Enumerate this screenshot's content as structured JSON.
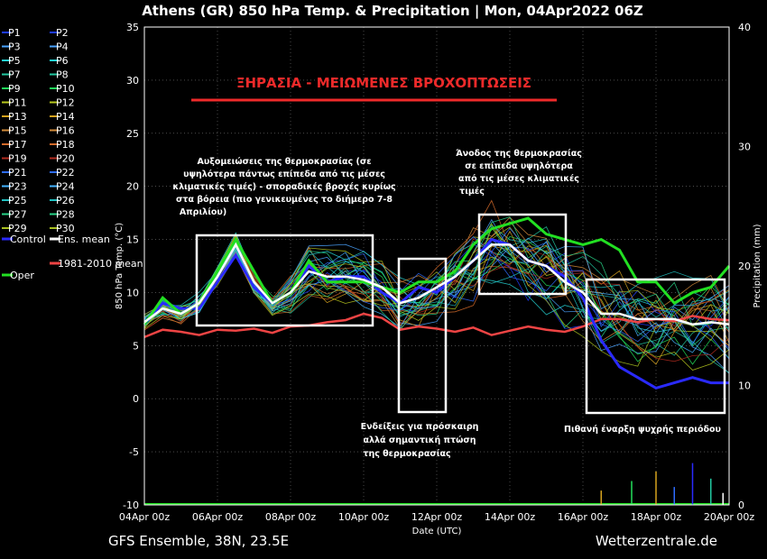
{
  "chart_data": {
    "type": "line",
    "title": "Athens  (GR)  850 hPa Temp. & Precipitation | Mon, 04Apr2022 06Z",
    "xlabel": "Date (UTC)",
    "ylabel": "850 hPa Temp. (°C)",
    "y2label": "Precipitation (mm)",
    "ylim": [
      -10,
      35
    ],
    "y2lim": [
      0,
      40
    ],
    "xlim": [
      "04Apr 00z",
      "20Apr 00z"
    ],
    "x_ticks": [
      "04Apr 00z",
      "06Apr 00z",
      "08Apr 00z",
      "10Apr 00z",
      "12Apr 00z",
      "14Apr 00z",
      "16Apr 00z",
      "18Apr 00z",
      "20Apr 00z"
    ],
    "y_ticks": [
      "35",
      "30",
      "25",
      "20",
      "15",
      "10",
      "5",
      "0",
      "-5",
      "-10"
    ],
    "y2_ticks": [
      "40",
      "30",
      "20",
      "10",
      "0"
    ],
    "grid": true,
    "legend_position": "left",
    "legend": [
      "P1",
      "P2",
      "P3",
      "P4",
      "P5",
      "P6",
      "P7",
      "P8",
      "P9",
      "P10",
      "P11",
      "P12",
      "P13",
      "P14",
      "P15",
      "P16",
      "P17",
      "P18",
      "P19",
      "P20",
      "P21",
      "P22",
      "P23",
      "P24",
      "P25",
      "P26",
      "P27",
      "P28",
      "P29",
      "P30",
      "Control",
      "Ens. mean",
      "Oper",
      "1981-2010 mean"
    ],
    "legend_colors": [
      "#1e3cff",
      "#1e3cff",
      "#4aa3ff",
      "#4aa3ff",
      "#24d3d3",
      "#24d3d3",
      "#22c7a0",
      "#22c7a0",
      "#22e05a",
      "#22e05a",
      "#b8c91e",
      "#b8c91e",
      "#d6a21e",
      "#d6a21e",
      "#d08a3a",
      "#d08a3a",
      "#d46a2a",
      "#d46a2a",
      "#b02a1e",
      "#b02a1e",
      "#2e6cff",
      "#2e6cff",
      "#44b4ff",
      "#44b4ff",
      "#20c0c0",
      "#20c0c0",
      "#28d488",
      "#28d488",
      "#a8c020",
      "#a8c020",
      "#2a2aff",
      "#ffffff",
      "#22e022",
      "#ee4444"
    ],
    "series": [
      {
        "name": "Ens. mean",
        "x_hours": [
          0,
          12,
          24,
          36,
          48,
          60,
          72,
          84,
          96,
          108,
          120,
          132,
          144,
          156,
          168,
          180,
          192,
          204,
          216,
          228,
          240,
          252,
          264,
          276,
          288,
          300,
          312,
          324,
          336,
          348,
          360,
          372,
          384
        ],
        "values": [
          7.2,
          8.5,
          8.0,
          9.0,
          11.5,
          14.5,
          11.0,
          9.0,
          10.0,
          12.0,
          11.5,
          11.5,
          11.2,
          10.5,
          9.0,
          9.5,
          10.5,
          11.5,
          13.0,
          14.5,
          14.5,
          13.0,
          12.5,
          11.0,
          10.0,
          8.0,
          8.0,
          7.5,
          7.5,
          7.5,
          7.0,
          7.2,
          7.0
        ]
      },
      {
        "name": "Control",
        "x_hours": [
          0,
          12,
          24,
          36,
          48,
          60,
          72,
          84,
          96,
          108,
          120,
          132,
          144,
          156,
          168,
          180,
          192,
          204,
          216,
          228,
          240,
          252,
          264,
          276,
          288,
          300,
          312,
          324,
          336,
          348,
          360,
          372,
          384
        ],
        "values": [
          7.0,
          9.0,
          8.5,
          8.5,
          11.0,
          13.5,
          10.5,
          9.0,
          10.0,
          12.5,
          11.0,
          11.5,
          11.5,
          10.0,
          9.0,
          10.5,
          10.0,
          11.5,
          13.0,
          15.0,
          14.5,
          13.0,
          12.5,
          11.5,
          9.5,
          5.5,
          3.0,
          2.0,
          1.0,
          1.5,
          2.0,
          1.5,
          1.5
        ]
      },
      {
        "name": "Oper",
        "x_hours": [
          0,
          12,
          24,
          36,
          48,
          60,
          72,
          84,
          96,
          108,
          120,
          132,
          144,
          156,
          168,
          180,
          192,
          204,
          216,
          228,
          240,
          252,
          264,
          276,
          288,
          300,
          312,
          324,
          336,
          348,
          360,
          372,
          384
        ],
        "values": [
          7.0,
          9.5,
          8.0,
          9.0,
          12.0,
          15.0,
          12.0,
          9.0,
          10.0,
          13.0,
          11.0,
          11.0,
          11.0,
          10.5,
          10.0,
          11.0,
          11.0,
          12.0,
          14.5,
          16.0,
          16.5,
          17.0,
          15.5,
          15.0,
          14.5,
          15.0,
          14.0,
          11.0,
          11.0,
          9.0,
          10.0,
          10.5,
          12.5
        ]
      },
      {
        "name": "1981-2010 mean",
        "x_hours": [
          0,
          12,
          24,
          36,
          48,
          60,
          72,
          84,
          96,
          108,
          120,
          132,
          144,
          156,
          168,
          180,
          192,
          204,
          216,
          228,
          240,
          252,
          264,
          276,
          288,
          300,
          312,
          324,
          336,
          348,
          360,
          372,
          384
        ],
        "values": [
          5.8,
          6.5,
          6.3,
          6.0,
          6.5,
          6.4,
          6.6,
          6.2,
          6.8,
          6.9,
          7.2,
          7.4,
          8.0,
          7.6,
          6.5,
          6.8,
          6.6,
          6.3,
          6.7,
          6.0,
          6.4,
          6.8,
          6.5,
          6.3,
          6.8,
          7.5,
          7.5,
          7.2,
          7.5,
          7.3,
          7.8,
          7.5,
          7.4
        ]
      }
    ],
    "annotations": [
      {
        "text": "ΞΗΡΑΣΙΑ - ΜΕΙΩΜΕΝΕΣ ΒΡΟΧΟΠΤΩΣΕΙΣ",
        "color": "#ee2a2a"
      },
      {
        "lines": [
          "Αυξομειώσεις της θερμοκρασίας (σε",
          "υψηλότερα πάντως επίπεδα από τις μέσες",
          "κλιματικές τιμές) - σποραδικές βροχές κυρίως",
          "στα βόρεια (πιο γενικευμένες το διήμερο 7-8",
          "Απριλίου)"
        ]
      },
      {
        "lines": [
          "Άνοδος της θερμοκρασίας",
          "σε επίπεδα υψηλότερα",
          "από τις μέσες κλιματικές",
          "τιμές"
        ]
      },
      {
        "lines": [
          "Ενδείξεις για πρόσκαιρη",
          "αλλά σημαντική πτώση",
          "της θερμοκρασίας"
        ]
      },
      {
        "lines": [
          "Πιθανή έναρξη ψυχρής περιόδου"
        ]
      }
    ],
    "footer_left": "GFS Ensemble, 38N, 23.5E",
    "footer_right": "Wetterzentrale.de"
  }
}
